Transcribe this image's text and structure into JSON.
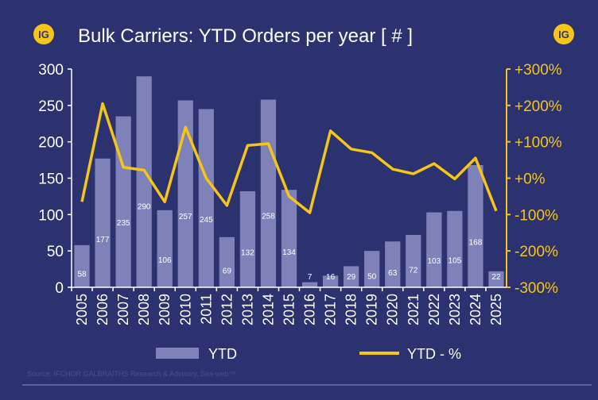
{
  "header": {
    "title": "Bulk Carriers: YTD Orders per year [ # ]",
    "logo_text": "IG"
  },
  "footer": {
    "source": "Source: IFCHOR GALBRAITHS Research & Advisory, Sea-web™"
  },
  "colors": {
    "background": "#2c3170",
    "bar": "#7e82b8",
    "line": "#f5c518",
    "axis_left": "#ffffff",
    "axis_right": "#f5c518"
  },
  "chart_data": {
    "type": "bar",
    "categories": [
      "2005",
      "2006",
      "2007",
      "2008",
      "2009",
      "2010",
      "2011",
      "2012",
      "2013",
      "2014",
      "2015",
      "2016",
      "2017",
      "2018",
      "2019",
      "2020",
      "2021",
      "2022",
      "2023",
      "2024",
      "2025"
    ],
    "series": [
      {
        "name": "YTD",
        "type": "bar",
        "axis": "left",
        "values": [
          58,
          177,
          235,
          290,
          106,
          257,
          245,
          69,
          132,
          258,
          134,
          7,
          16,
          29,
          50,
          63,
          72,
          103,
          105,
          168,
          22
        ]
      },
      {
        "name": "YTD - %",
        "type": "line",
        "axis": "right",
        "values": [
          -65,
          205,
          30,
          22,
          -65,
          140,
          0,
          -75,
          90,
          95,
          -50,
          -95,
          130,
          80,
          70,
          25,
          12,
          40,
          -2,
          55,
          -90
        ]
      }
    ],
    "ylim_left": [
      0,
      300
    ],
    "yticks_left": [
      "0",
      "50",
      "100",
      "150",
      "200",
      "250",
      "300"
    ],
    "ylim_right": [
      -300,
      300
    ],
    "yticks_right": [
      "-300%",
      "-200%",
      "-100%",
      "+0%",
      "+100%",
      "+200%",
      "+300%"
    ],
    "grid": false,
    "legend_position": "bottom"
  }
}
